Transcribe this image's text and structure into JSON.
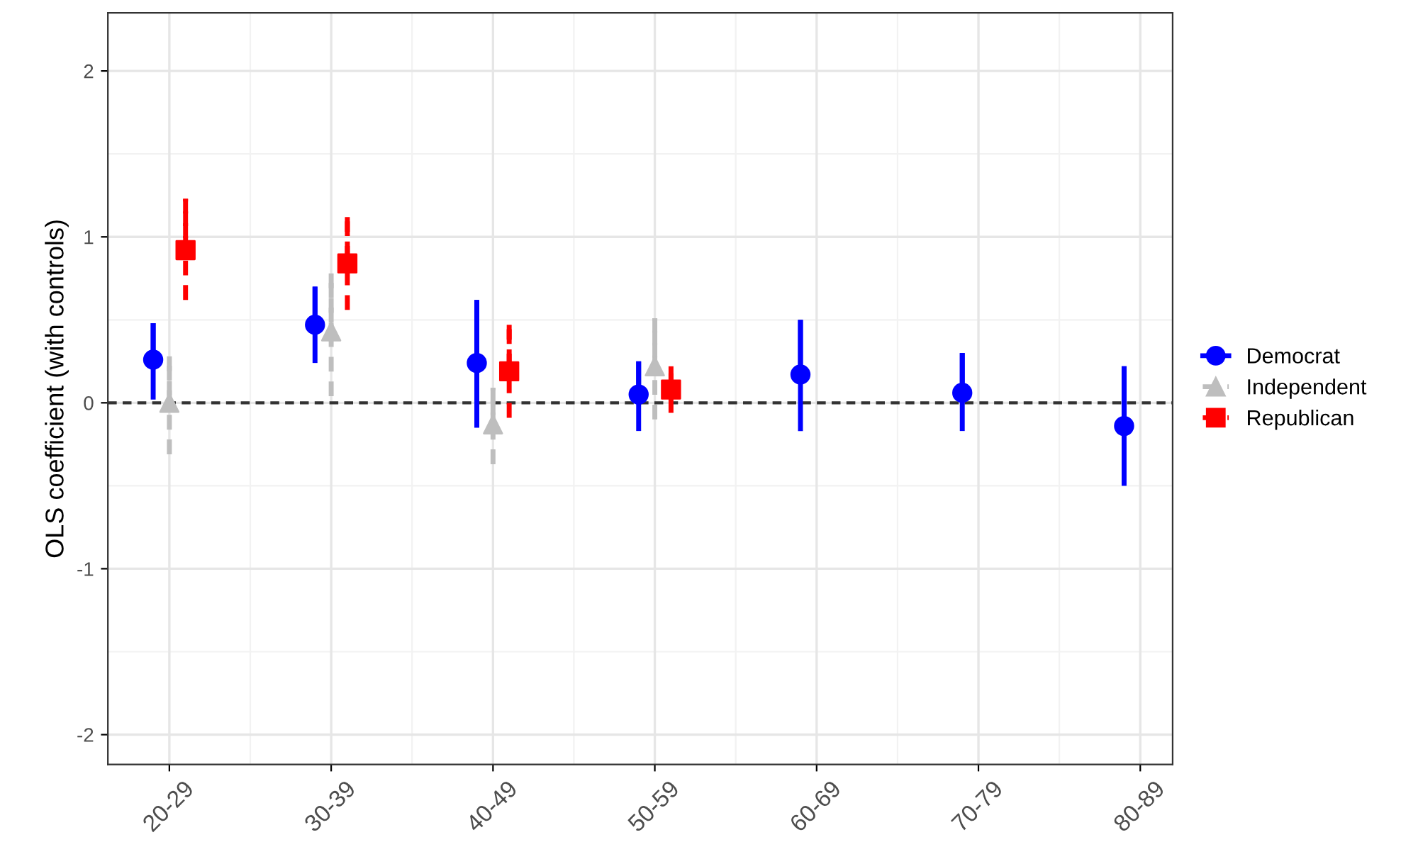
{
  "chart_data": {
    "type": "scatter",
    "ylabel": "OLS coefficient (with controls)",
    "categories": [
      "20-29",
      "30-39",
      "40-49",
      "50-59",
      "60-69",
      "70-79",
      "80-89"
    ],
    "series": [
      {
        "name": "Democrat",
        "color": "#0000ff",
        "marker": "circle",
        "line_style": "solid",
        "values": [
          0.26,
          0.47,
          0.24,
          0.05,
          0.17,
          0.06,
          -0.14
        ],
        "errors": [
          [
            0.02,
            0.48
          ],
          [
            0.24,
            0.7
          ],
          [
            -0.15,
            0.62
          ],
          [
            -0.17,
            0.25
          ],
          [
            -0.17,
            0.5
          ],
          [
            -0.17,
            0.3
          ],
          [
            -0.5,
            0.22
          ]
        ]
      },
      {
        "name": "Independent",
        "color": "#bebebe",
        "marker": "triangle",
        "line_style": "dashed",
        "values": [
          0.0,
          0.43,
          -0.13,
          0.22,
          null,
          null,
          null
        ],
        "errors": [
          [
            -0.31,
            0.28
          ],
          [
            0.04,
            0.78
          ],
          [
            -0.37,
            0.09
          ],
          [
            -0.1,
            0.51
          ],
          null,
          null,
          null
        ]
      },
      {
        "name": "Republican",
        "color": "#ff0000",
        "marker": "square",
        "line_style": "dashed",
        "values": [
          0.92,
          0.84,
          0.19,
          0.08,
          null,
          null,
          null
        ],
        "errors": [
          [
            0.62,
            1.23
          ],
          [
            0.56,
            1.12
          ],
          [
            -0.09,
            0.47
          ],
          [
            -0.06,
            0.22
          ],
          null,
          null,
          null
        ]
      }
    ],
    "ylim": [
      -2.18,
      2.35
    ],
    "yticks": [
      -2,
      -1,
      0,
      1,
      2
    ],
    "grid": true,
    "legend": "right",
    "ref_lines": [
      {
        "axis": "y",
        "value": 0,
        "color": "#333333",
        "line_style": "dashed"
      }
    ]
  }
}
